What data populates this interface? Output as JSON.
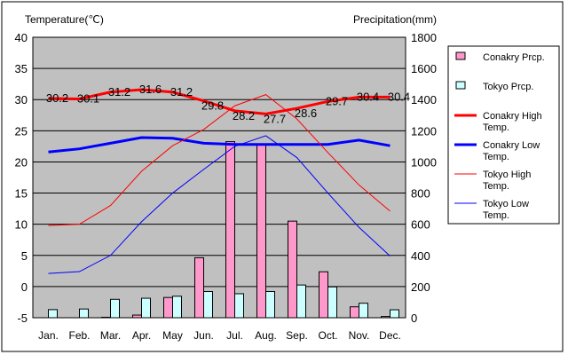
{
  "chart_data": {
    "type": "bar+line",
    "title": "",
    "ylabel": "Temperature(℃)",
    "y2label": "Precipitation(mm)",
    "ylim": [
      -5,
      40
    ],
    "y2lim": [
      0,
      1800
    ],
    "yticks": [
      -5,
      0,
      5,
      10,
      15,
      20,
      25,
      30,
      35,
      40
    ],
    "y2ticks": [
      0,
      200,
      400,
      600,
      800,
      1000,
      1200,
      1400,
      1600,
      1800
    ],
    "categories": [
      "Jan.",
      "Feb.",
      "Mar.",
      "Apr.",
      "May",
      "Jun.",
      "Jul.",
      "Aug.",
      "Sep.",
      "Oct.",
      "Nov.",
      "Dec."
    ],
    "grid": true,
    "legend_position": "right",
    "bars": [
      {
        "name": "Conakry Prcp.",
        "color": "#ff99cc",
        "values": [
          0,
          0,
          3,
          17,
          130,
          385,
          1130,
          1110,
          620,
          295,
          70,
          8
        ]
      },
      {
        "name": "Tokyo Prcp.",
        "color": "#ccffff",
        "values": [
          52,
          56,
          118,
          125,
          138,
          168,
          154,
          168,
          210,
          198,
          93,
          51
        ]
      }
    ],
    "lines": [
      {
        "name": "Conakry High Temp.",
        "color": "#ff0000",
        "width": 3,
        "values": [
          30.2,
          30.1,
          31.2,
          31.6,
          31.2,
          29.8,
          28.2,
          27.7,
          28.6,
          29.7,
          30.4,
          30.4
        ],
        "labels": [
          "30.2",
          "30.1",
          "31.2",
          "31.6",
          "31.2",
          "29.8",
          "28.2",
          "27.7",
          "28.6",
          "29.7",
          "30.4",
          "30.4"
        ]
      },
      {
        "name": "Conakry Low Temp.",
        "color": "#0000ff",
        "width": 3,
        "values": [
          21.6,
          22.1,
          23.0,
          23.9,
          23.8,
          23.0,
          22.8,
          22.8,
          22.8,
          22.8,
          23.5,
          22.6
        ]
      },
      {
        "name": "Tokyo High Temp.",
        "color": "#ff0000",
        "width": 1,
        "values": [
          9.8,
          10.0,
          13.0,
          18.5,
          22.6,
          25.2,
          29.0,
          30.8,
          26.9,
          21.5,
          16.3,
          12.1
        ]
      },
      {
        "name": "Tokyo Low Temp.",
        "color": "#0000ff",
        "width": 1,
        "values": [
          2.1,
          2.4,
          5.0,
          10.4,
          15.0,
          18.8,
          22.5,
          24.2,
          20.7,
          15.0,
          9.5,
          4.9
        ]
      }
    ]
  }
}
